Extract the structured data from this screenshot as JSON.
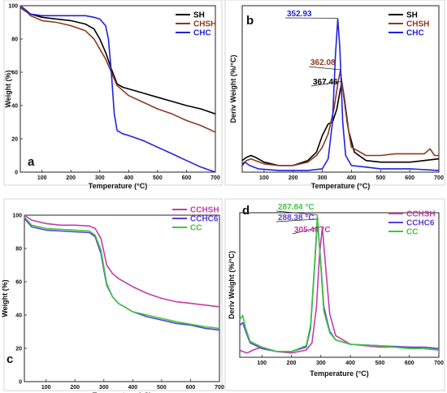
{
  "chart_data": [
    {
      "panel": "a",
      "type": "line",
      "xlabel": "Temperature (°C)",
      "ylabel": "Weight (%)",
      "xlim": [
        25,
        700
      ],
      "ylim": [
        0,
        100
      ],
      "xticks": [
        100,
        200,
        300,
        400,
        500,
        600,
        700
      ],
      "yticks": [
        0,
        20,
        40,
        60,
        80,
        100
      ],
      "legend_position": "top-right",
      "series": [
        {
          "name": "SH",
          "color": "#000000",
          "x": [
            25,
            40,
            60,
            100,
            150,
            200,
            250,
            280,
            300,
            320,
            340,
            360,
            380,
            400,
            450,
            500,
            550,
            600,
            650,
            700
          ],
          "y": [
            100,
            98,
            95,
            93,
            92,
            91,
            89,
            86,
            80,
            72,
            62,
            53,
            51,
            50,
            47.5,
            45,
            42.5,
            40,
            38,
            35
          ]
        },
        {
          "name": "CHSH",
          "color": "#8b3a1e",
          "x": [
            25,
            40,
            60,
            100,
            150,
            200,
            250,
            280,
            300,
            320,
            340,
            360,
            380,
            400,
            450,
            500,
            550,
            600,
            650,
            700
          ],
          "y": [
            100,
            98,
            94,
            91,
            90,
            88,
            85,
            80,
            74,
            68,
            60,
            52,
            49,
            46,
            42,
            38,
            35,
            31,
            28,
            24
          ]
        },
        {
          "name": "CHC",
          "color": "#2222dd",
          "x": [
            25,
            40,
            60,
            100,
            150,
            200,
            250,
            280,
            300,
            320,
            330,
            340,
            350,
            360,
            380,
            400,
            450,
            500,
            550,
            600,
            650,
            700
          ],
          "y": [
            99,
            97,
            95,
            94,
            94,
            94,
            94,
            93,
            92,
            88,
            80,
            60,
            35,
            25,
            23,
            22,
            19,
            15,
            11,
            7,
            3,
            0
          ]
        }
      ]
    },
    {
      "panel": "b",
      "type": "line",
      "xlabel": "Temperature (°C)",
      "ylabel": "Deriv Weight (%/°C)",
      "xlim": [
        25,
        700
      ],
      "ylim": [
        0,
        1.0
      ],
      "xticks": [
        100,
        200,
        300,
        400,
        500,
        600,
        700
      ],
      "legend_position": "top-right",
      "annotations": [
        {
          "text": "352.93",
          "color": "#2222dd"
        },
        {
          "text": "362.08",
          "color": "#8b3a1e"
        },
        {
          "text": "367.46",
          "color": "#000000"
        }
      ],
      "series": [
        {
          "name": "SH",
          "color": "#000000",
          "x": [
            25,
            40,
            55,
            70,
            100,
            150,
            200,
            250,
            280,
            300,
            320,
            335,
            350,
            360,
            367,
            375,
            390,
            410,
            450,
            500,
            550,
            600,
            650,
            700
          ],
          "y": [
            0.07,
            0.09,
            0.1,
            0.09,
            0.06,
            0.04,
            0.04,
            0.07,
            0.12,
            0.22,
            0.29,
            0.3,
            0.38,
            0.48,
            0.54,
            0.45,
            0.25,
            0.12,
            0.07,
            0.06,
            0.06,
            0.06,
            0.07,
            0.08
          ]
        },
        {
          "name": "CHSH",
          "color": "#8b3a1e",
          "x": [
            25,
            40,
            55,
            70,
            100,
            150,
            200,
            250,
            280,
            300,
            320,
            340,
            355,
            362,
            370,
            385,
            400,
            450,
            500,
            550,
            600,
            650,
            670,
            685,
            700
          ],
          "y": [
            0.05,
            0.07,
            0.08,
            0.07,
            0.05,
            0.04,
            0.04,
            0.06,
            0.1,
            0.15,
            0.23,
            0.38,
            0.55,
            0.61,
            0.5,
            0.3,
            0.15,
            0.1,
            0.1,
            0.11,
            0.11,
            0.11,
            0.14,
            0.1,
            0.1
          ]
        },
        {
          "name": "CHC",
          "color": "#2222dd",
          "x": [
            25,
            35,
            50,
            80,
            150,
            250,
            300,
            320,
            335,
            345,
            353,
            360,
            370,
            380,
            400,
            450,
            500,
            600,
            700
          ],
          "y": [
            0.04,
            0.06,
            0.04,
            0.02,
            0.01,
            0.01,
            0.02,
            0.08,
            0.3,
            0.7,
            0.92,
            0.75,
            0.3,
            0.1,
            0.04,
            0.03,
            0.02,
            0.02,
            0.01
          ]
        }
      ]
    },
    {
      "panel": "c",
      "type": "line",
      "xlabel": "Temperature (°C)",
      "ylabel": "Weight (%)",
      "xlim": [
        25,
        700
      ],
      "ylim": [
        0,
        100
      ],
      "xticks": [
        100,
        200,
        300,
        400,
        500,
        600,
        700
      ],
      "yticks": [
        0,
        20,
        40,
        60,
        80,
        100
      ],
      "legend_position": "top-right",
      "series": [
        {
          "name": "CCHSH",
          "color": "#c43ca8",
          "x": [
            25,
            50,
            100,
            150,
            200,
            250,
            270,
            290,
            300,
            310,
            330,
            350,
            400,
            450,
            500,
            550,
            600,
            650,
            700
          ],
          "y": [
            100,
            97,
            95,
            94,
            94,
            93.5,
            92,
            86,
            78,
            70,
            65,
            62,
            57,
            53,
            50,
            48,
            47,
            46,
            45
          ]
        },
        {
          "name": "CCHC6",
          "color": "#5b3fd6",
          "x": [
            25,
            50,
            100,
            150,
            200,
            250,
            270,
            290,
            300,
            310,
            330,
            350,
            400,
            450,
            500,
            550,
            600,
            650,
            700
          ],
          "y": [
            98,
            93,
            91,
            90.5,
            90,
            89.5,
            87,
            77,
            67,
            58,
            51,
            47,
            42,
            39,
            37,
            35,
            34,
            32,
            31
          ]
        },
        {
          "name": "CC",
          "color": "#3cc83c",
          "x": [
            25,
            50,
            100,
            150,
            200,
            250,
            270,
            290,
            300,
            310,
            330,
            350,
            400,
            450,
            500,
            550,
            600,
            650,
            700
          ],
          "y": [
            99,
            94,
            92,
            91.5,
            91,
            90.5,
            88,
            79,
            69,
            59,
            51,
            47,
            42,
            40,
            38,
            36,
            34.5,
            33,
            32
          ]
        }
      ]
    },
    {
      "panel": "d",
      "type": "line",
      "xlabel": "Temperature (°C)",
      "ylabel": "Deriv Weight (%/°C)",
      "xlim": [
        25,
        700
      ],
      "ylim": [
        0,
        1.0
      ],
      "xticks": [
        100,
        200,
        300,
        400,
        500,
        600,
        700
      ],
      "legend_position": "top-right",
      "annotations": [
        {
          "text": "287.84 °C",
          "color": "#3cc83c"
        },
        {
          "text": "288.38 °C",
          "color": "#5b3fd6"
        },
        {
          "text": "305.40 °C",
          "color": "#c43ca8"
        }
      ],
      "series": [
        {
          "name": "CCHSH",
          "color": "#c43ca8",
          "x": [
            25,
            35,
            50,
            70,
            100,
            150,
            200,
            250,
            270,
            285,
            295,
            305,
            315,
            330,
            350,
            400,
            500,
            600,
            650,
            700
          ],
          "y": [
            0.05,
            0.04,
            0.03,
            0.05,
            0.07,
            0.04,
            0.03,
            0.05,
            0.1,
            0.35,
            0.7,
            0.9,
            0.65,
            0.3,
            0.15,
            0.09,
            0.07,
            0.07,
            0.06,
            0.05
          ]
        },
        {
          "name": "CCHC6",
          "color": "#5b3fd6",
          "x": [
            25,
            35,
            45,
            60,
            100,
            150,
            200,
            250,
            265,
            278,
            288,
            298,
            310,
            330,
            350,
            400,
            500,
            600,
            650,
            700
          ],
          "y": [
            0.22,
            0.24,
            0.18,
            0.1,
            0.06,
            0.04,
            0.04,
            0.07,
            0.2,
            0.6,
            0.95,
            0.7,
            0.35,
            0.18,
            0.12,
            0.09,
            0.08,
            0.07,
            0.07,
            0.06
          ]
        },
        {
          "name": "CC",
          "color": "#3cc83c",
          "x": [
            25,
            35,
            45,
            60,
            100,
            150,
            200,
            250,
            265,
            278,
            288,
            298,
            310,
            330,
            350,
            400,
            500,
            600,
            650,
            700
          ],
          "y": [
            0.26,
            0.29,
            0.2,
            0.11,
            0.07,
            0.04,
            0.04,
            0.08,
            0.22,
            0.62,
            0.98,
            0.68,
            0.32,
            0.17,
            0.12,
            0.09,
            0.08,
            0.06,
            0.06,
            0.05
          ]
        }
      ]
    }
  ]
}
